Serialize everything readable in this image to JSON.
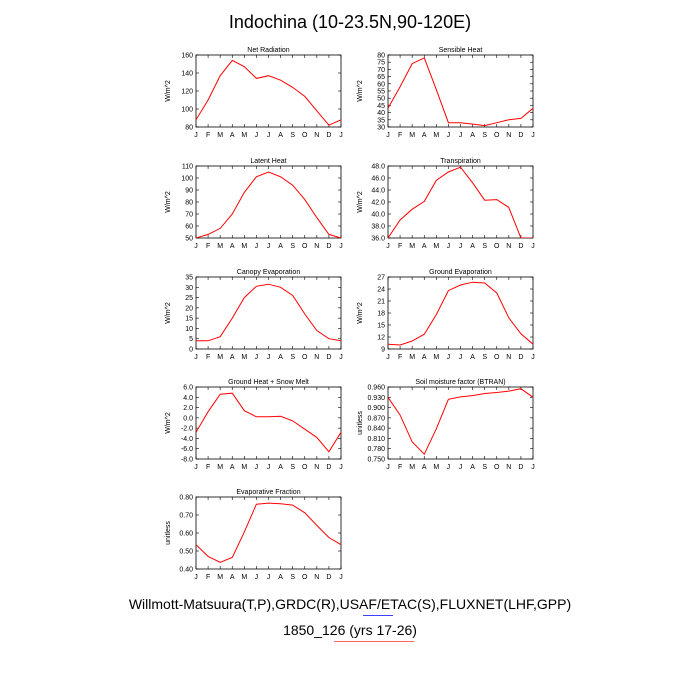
{
  "title": "Indochina (10-23.5N,90-120E)",
  "footer": {
    "line1": "Willmott-Matsuura(T,P),GRDC(R),USAF/ETAC(S),FLUXNET(LHF,GPP)",
    "line2": "1850_126 (yrs 17-26)"
  },
  "colors": {
    "line": "#ff0000",
    "underline_blue": "#4040ff",
    "underline_red": "#ff6060"
  },
  "chart_data": [
    {
      "type": "line",
      "title": "Net Radiation",
      "ylabel": "W/m^2",
      "categories": [
        "J",
        "F",
        "M",
        "A",
        "M",
        "J",
        "J",
        "A",
        "S",
        "O",
        "N",
        "D",
        "J"
      ],
      "ylim": [
        80,
        160
      ],
      "yticks": [
        "80",
        "100",
        "120",
        "140",
        "160"
      ],
      "values": [
        88,
        110,
        137,
        154,
        147,
        134,
        137,
        132,
        124,
        114,
        98,
        82,
        88
      ]
    },
    {
      "type": "line",
      "title": "Sensible Heat",
      "ylabel": "W/m^2",
      "categories": [
        "J",
        "F",
        "M",
        "A",
        "M",
        "J",
        "J",
        "A",
        "S",
        "O",
        "N",
        "D",
        "J"
      ],
      "ylim": [
        30,
        80
      ],
      "yticks": [
        "30",
        "35",
        "40",
        "45",
        "50",
        "55",
        "60",
        "65",
        "70",
        "75",
        "80"
      ],
      "values": [
        43,
        58,
        74,
        78,
        56,
        33,
        33,
        32,
        31,
        33,
        35,
        36,
        43
      ]
    },
    {
      "type": "line",
      "title": "Latent Heat",
      "ylabel": "W/m^2",
      "categories": [
        "J",
        "F",
        "M",
        "A",
        "M",
        "J",
        "J",
        "A",
        "S",
        "O",
        "N",
        "D",
        "J"
      ],
      "ylim": [
        50,
        110
      ],
      "yticks": [
        "50",
        "60",
        "70",
        "80",
        "90",
        "100",
        "110"
      ],
      "values": [
        50,
        53,
        58,
        70,
        88,
        101,
        105,
        101,
        94,
        82,
        67,
        53,
        50
      ]
    },
    {
      "type": "line",
      "title": "Transpiration",
      "ylabel": "W/m^2",
      "categories": [
        "J",
        "F",
        "M",
        "A",
        "M",
        "J",
        "J",
        "A",
        "S",
        "O",
        "N",
        "D",
        "J"
      ],
      "ylim": [
        36,
        48
      ],
      "yticks": [
        "36.0",
        "38.0",
        "40.0",
        "42.0",
        "44.0",
        "46.0",
        "48.0"
      ],
      "values": [
        36.0,
        39.0,
        40.8,
        42.1,
        45.6,
        47.0,
        47.8,
        45.2,
        42.3,
        42.4,
        41.1,
        36.0,
        36.0
      ]
    },
    {
      "type": "line",
      "title": "Canopy Evaporation",
      "ylabel": "W/m^2",
      "categories": [
        "J",
        "F",
        "M",
        "A",
        "M",
        "J",
        "J",
        "A",
        "S",
        "O",
        "N",
        "D",
        "J"
      ],
      "ylim": [
        0,
        35
      ],
      "yticks": [
        "0",
        "5",
        "10",
        "15",
        "20",
        "25",
        "30",
        "35"
      ],
      "values": [
        4,
        4,
        6,
        15,
        25,
        30.5,
        31.5,
        30,
        26,
        17,
        9,
        5,
        4
      ]
    },
    {
      "type": "line",
      "title": "Ground Evaporation",
      "ylabel": "W/m^2",
      "categories": [
        "J",
        "F",
        "M",
        "A",
        "M",
        "J",
        "J",
        "A",
        "S",
        "O",
        "N",
        "D",
        "J"
      ],
      "ylim": [
        9,
        27
      ],
      "yticks": [
        "9",
        "12",
        "15",
        "18",
        "21",
        "24",
        "27"
      ],
      "values": [
        10.2,
        10.0,
        11.0,
        12.7,
        17.6,
        23.6,
        25.0,
        25.7,
        25.5,
        23.0,
        16.8,
        12.8,
        10.2
      ]
    },
    {
      "type": "line",
      "title": "Ground Heat + Snow Melt",
      "ylabel": "W/m^2",
      "categories": [
        "J",
        "F",
        "M",
        "A",
        "M",
        "J",
        "J",
        "A",
        "S",
        "O",
        "N",
        "D",
        "J"
      ],
      "ylim": [
        -8,
        6
      ],
      "yticks": [
        "-8.0",
        "-6.0",
        "-4.0",
        "-2.0",
        "0.0",
        "2.0",
        "4.0",
        "6.0"
      ],
      "values": [
        -2.8,
        1.2,
        4.6,
        4.8,
        1.4,
        0.2,
        0.2,
        0.3,
        -0.6,
        -2.2,
        -3.8,
        -6.6,
        -2.8
      ]
    },
    {
      "type": "line",
      "title": "Soil moisture factor (BTRAN)",
      "ylabel": "unitless",
      "categories": [
        "J",
        "F",
        "M",
        "A",
        "M",
        "J",
        "J",
        "A",
        "S",
        "O",
        "N",
        "D",
        "J"
      ],
      "ylim": [
        0.75,
        0.96
      ],
      "yticks": [
        "0.750",
        "0.780",
        "0.810",
        "0.840",
        "0.870",
        "0.900",
        "0.930",
        "0.960"
      ],
      "values": [
        0.93,
        0.878,
        0.8,
        0.764,
        0.838,
        0.924,
        0.931,
        0.935,
        0.941,
        0.944,
        0.948,
        0.955,
        0.93
      ]
    },
    {
      "type": "line",
      "title": "Evaporative Fraction",
      "ylabel": "unitless",
      "categories": [
        "J",
        "F",
        "M",
        "A",
        "M",
        "J",
        "J",
        "A",
        "S",
        "O",
        "N",
        "D",
        "J"
      ],
      "ylim": [
        0.4,
        0.8
      ],
      "yticks": [
        "0.40",
        "0.50",
        "0.60",
        "0.70",
        "0.80"
      ],
      "values": [
        0.535,
        0.47,
        0.437,
        0.465,
        0.605,
        0.76,
        0.766,
        0.763,
        0.755,
        0.712,
        0.642,
        0.575,
        0.535
      ]
    }
  ]
}
